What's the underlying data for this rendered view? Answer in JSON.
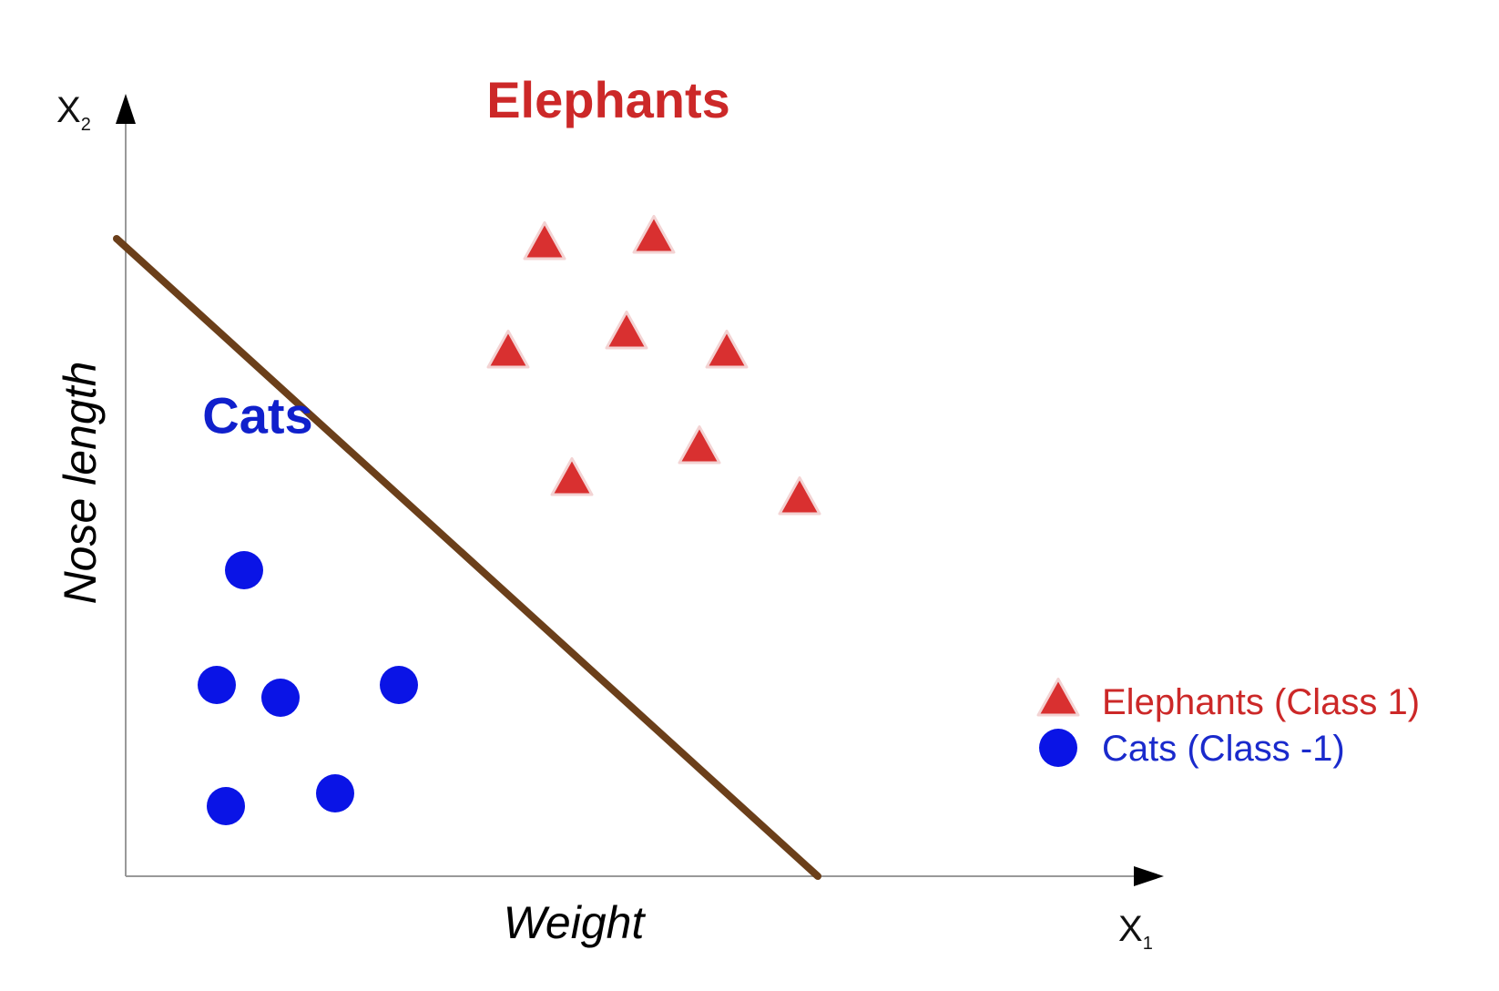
{
  "chart_data": {
    "type": "scatter",
    "title": "",
    "xlabel": "Weight",
    "ylabel": "Nose length",
    "x_axis_name": "X",
    "x_axis_sub": "1",
    "y_axis_name": "X",
    "y_axis_sub": "2",
    "xlim": [
      0,
      10
    ],
    "ylim": [
      0,
      10
    ],
    "grid": false,
    "legend_position": "right",
    "series": [
      {
        "name": "Elephants (Class 1)",
        "marker": "triangle",
        "color": "#d93030",
        "points": [
          {
            "x": 4.6,
            "y": 9.9
          },
          {
            "x": 5.8,
            "y": 10.0
          },
          {
            "x": 4.2,
            "y": 8.2
          },
          {
            "x": 5.5,
            "y": 8.5
          },
          {
            "x": 6.6,
            "y": 8.2
          },
          {
            "x": 6.3,
            "y": 6.7
          },
          {
            "x": 4.9,
            "y": 6.2
          },
          {
            "x": 7.4,
            "y": 5.9
          }
        ]
      },
      {
        "name": "Cats (Class -1)",
        "marker": "circle",
        "color": "#0a14e6",
        "points": [
          {
            "x": 1.3,
            "y": 4.8
          },
          {
            "x": 1.0,
            "y": 3.0
          },
          {
            "x": 1.7,
            "y": 2.8
          },
          {
            "x": 3.0,
            "y": 3.0
          },
          {
            "x": 1.1,
            "y": 1.1
          },
          {
            "x": 2.3,
            "y": 1.3
          }
        ]
      }
    ],
    "decision_boundary": {
      "color": "#6b3f1a",
      "from": {
        "x": -0.1,
        "y": 10.0
      },
      "to": {
        "x": 7.6,
        "y": 0.0
      }
    },
    "annotations": [
      {
        "text": "Elephants",
        "color": "#cc2828",
        "x": 5.3,
        "y": 11.9
      },
      {
        "text": "Cats",
        "color": "#1020cc",
        "x": 1.45,
        "y": 6.95
      }
    ],
    "legend": [
      {
        "marker": "triangle",
        "label": "Elephants (Class 1)",
        "color": "#d93030",
        "text_color": "#cc2828"
      },
      {
        "marker": "circle",
        "label": "Cats (Class -1)",
        "color": "#0a14e6",
        "text_color": "#1a2acc"
      }
    ]
  }
}
